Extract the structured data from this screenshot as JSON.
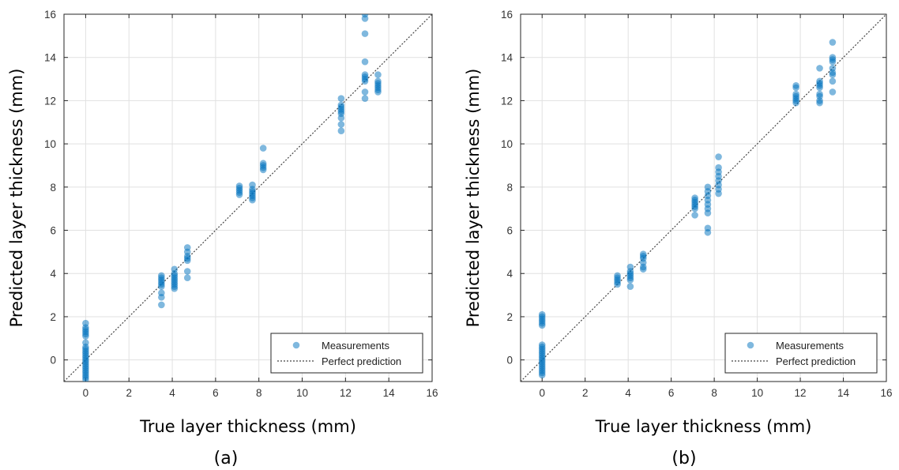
{
  "chart_data": [
    {
      "type": "scatter",
      "panel_label": "(a)",
      "xlabel": "True layer thickness (mm)",
      "ylabel": "Predicted layer thickness (mm)",
      "xlim": [
        -1,
        16
      ],
      "ylim": [
        -1,
        16
      ],
      "xticks": [
        0,
        2,
        4,
        6,
        8,
        10,
        12,
        14,
        16
      ],
      "yticks": [
        0,
        2,
        4,
        6,
        8,
        10,
        12,
        14,
        16
      ],
      "grid": true,
      "legend": {
        "placement": "bottom-right",
        "entries": [
          "Measurements",
          "Perfect prediction"
        ]
      },
      "colors": {
        "points": "#0072BD",
        "reference_line": "#444444"
      },
      "series": [
        {
          "name": "Measurements",
          "points": [
            [
              0,
              1.7
            ],
            [
              0,
              1.5
            ],
            [
              0,
              1.4
            ],
            [
              0,
              1.3
            ],
            [
              0,
              1.2
            ],
            [
              0,
              1.1
            ],
            [
              0,
              0.8
            ],
            [
              0,
              0.6
            ],
            [
              0,
              0.5
            ],
            [
              0,
              0.4
            ],
            [
              0,
              0.3
            ],
            [
              0,
              0.2
            ],
            [
              0,
              0.1
            ],
            [
              0,
              0.0
            ],
            [
              0,
              -0.1
            ],
            [
              0,
              -0.2
            ],
            [
              0,
              -0.3
            ],
            [
              0,
              -0.4
            ],
            [
              0,
              -0.5
            ],
            [
              0,
              -0.6
            ],
            [
              0,
              -0.7
            ],
            [
              0,
              -0.8
            ],
            [
              0,
              -0.9
            ],
            [
              3.5,
              3.9
            ],
            [
              3.5,
              3.8
            ],
            [
              3.5,
              3.7
            ],
            [
              3.5,
              3.6
            ],
            [
              3.5,
              3.5
            ],
            [
              3.5,
              3.4
            ],
            [
              3.5,
              3.1
            ],
            [
              3.5,
              2.9
            ],
            [
              3.5,
              2.55
            ],
            [
              4.1,
              4.2
            ],
            [
              4.1,
              4.0
            ],
            [
              4.1,
              3.9
            ],
            [
              4.1,
              3.8
            ],
            [
              4.1,
              3.7
            ],
            [
              4.1,
              3.6
            ],
            [
              4.1,
              3.5
            ],
            [
              4.1,
              3.4
            ],
            [
              4.1,
              3.3
            ],
            [
              4.7,
              5.2
            ],
            [
              4.7,
              5.0
            ],
            [
              4.7,
              4.8
            ],
            [
              4.7,
              4.7
            ],
            [
              4.7,
              4.6
            ],
            [
              4.7,
              4.1
            ],
            [
              4.7,
              3.8
            ],
            [
              7.1,
              8.05
            ],
            [
              7.1,
              7.95
            ],
            [
              7.1,
              7.85
            ],
            [
              7.1,
              7.75
            ],
            [
              7.1,
              7.65
            ],
            [
              7.7,
              8.1
            ],
            [
              7.7,
              7.9
            ],
            [
              7.7,
              7.8
            ],
            [
              7.7,
              7.7
            ],
            [
              7.7,
              7.6
            ],
            [
              7.7,
              7.5
            ],
            [
              7.7,
              7.4
            ],
            [
              8.2,
              9.8
            ],
            [
              8.2,
              9.1
            ],
            [
              8.2,
              9.0
            ],
            [
              8.2,
              8.9
            ],
            [
              8.2,
              8.8
            ],
            [
              11.8,
              12.1
            ],
            [
              11.8,
              11.8
            ],
            [
              11.8,
              11.7
            ],
            [
              11.8,
              11.6
            ],
            [
              11.8,
              11.5
            ],
            [
              11.8,
              11.4
            ],
            [
              11.8,
              11.2
            ],
            [
              11.8,
              10.9
            ],
            [
              11.8,
              10.6
            ],
            [
              12.9,
              16.0
            ],
            [
              12.9,
              15.8
            ],
            [
              12.9,
              15.1
            ],
            [
              12.9,
              13.8
            ],
            [
              12.9,
              13.2
            ],
            [
              12.9,
              13.1
            ],
            [
              12.9,
              13.0
            ],
            [
              12.9,
              12.9
            ],
            [
              12.9,
              12.4
            ],
            [
              12.9,
              12.1
            ],
            [
              13.5,
              13.2
            ],
            [
              13.5,
              12.9
            ],
            [
              13.5,
              12.8
            ],
            [
              13.5,
              12.7
            ],
            [
              13.5,
              12.6
            ],
            [
              13.5,
              12.5
            ],
            [
              13.5,
              12.4
            ]
          ]
        },
        {
          "name": "Perfect prediction",
          "line": [
            [
              -1,
              -1
            ],
            [
              16,
              16
            ]
          ]
        }
      ]
    },
    {
      "type": "scatter",
      "panel_label": "(b)",
      "xlabel": "True layer thickness (mm)",
      "ylabel": "Predicted layer thickness (mm)",
      "xlim": [
        -1,
        16
      ],
      "ylim": [
        -1,
        16
      ],
      "xticks": [
        0,
        2,
        4,
        6,
        8,
        10,
        12,
        14,
        16
      ],
      "yticks": [
        0,
        2,
        4,
        6,
        8,
        10,
        12,
        14,
        16
      ],
      "grid": true,
      "legend": {
        "placement": "bottom-right",
        "entries": [
          "Measurements",
          "Perfect prediction"
        ]
      },
      "colors": {
        "points": "#0072BD",
        "reference_line": "#444444"
      },
      "series": [
        {
          "name": "Measurements",
          "points": [
            [
              0,
              2.1
            ],
            [
              0,
              2.0
            ],
            [
              0,
              1.9
            ],
            [
              0,
              1.8
            ],
            [
              0,
              1.7
            ],
            [
              0,
              1.6
            ],
            [
              0,
              0.7
            ],
            [
              0,
              0.6
            ],
            [
              0,
              0.5
            ],
            [
              0,
              0.4
            ],
            [
              0,
              0.3
            ],
            [
              0,
              0.2
            ],
            [
              0,
              0.1
            ],
            [
              0,
              0.0
            ],
            [
              0,
              -0.1
            ],
            [
              0,
              -0.2
            ],
            [
              0,
              -0.3
            ],
            [
              0,
              -0.4
            ],
            [
              0,
              -0.5
            ],
            [
              0,
              -0.6
            ],
            [
              0,
              -0.7
            ],
            [
              3.5,
              3.9
            ],
            [
              3.5,
              3.8
            ],
            [
              3.5,
              3.7
            ],
            [
              3.5,
              3.6
            ],
            [
              3.5,
              3.5
            ],
            [
              4.1,
              4.3
            ],
            [
              4.1,
              4.1
            ],
            [
              4.1,
              4.0
            ],
            [
              4.1,
              3.9
            ],
            [
              4.1,
              3.8
            ],
            [
              4.1,
              3.7
            ],
            [
              4.1,
              3.4
            ],
            [
              4.7,
              4.9
            ],
            [
              4.7,
              4.8
            ],
            [
              4.7,
              4.7
            ],
            [
              4.7,
              4.5
            ],
            [
              4.7,
              4.3
            ],
            [
              4.7,
              4.2
            ],
            [
              7.1,
              7.5
            ],
            [
              7.1,
              7.4
            ],
            [
              7.1,
              7.3
            ],
            [
              7.1,
              7.2
            ],
            [
              7.1,
              7.1
            ],
            [
              7.1,
              7.0
            ],
            [
              7.1,
              6.7
            ],
            [
              7.7,
              8.0
            ],
            [
              7.7,
              7.8
            ],
            [
              7.7,
              7.6
            ],
            [
              7.7,
              7.4
            ],
            [
              7.7,
              7.2
            ],
            [
              7.7,
              7.0
            ],
            [
              7.7,
              6.8
            ],
            [
              7.7,
              6.1
            ],
            [
              7.7,
              5.9
            ],
            [
              8.2,
              9.4
            ],
            [
              8.2,
              8.9
            ],
            [
              8.2,
              8.7
            ],
            [
              8.2,
              8.5
            ],
            [
              8.2,
              8.3
            ],
            [
              8.2,
              8.1
            ],
            [
              8.2,
              7.9
            ],
            [
              8.2,
              7.7
            ],
            [
              11.8,
              12.7
            ],
            [
              11.8,
              12.6
            ],
            [
              11.8,
              12.3
            ],
            [
              11.8,
              12.2
            ],
            [
              11.8,
              12.1
            ],
            [
              11.8,
              12.0
            ],
            [
              11.8,
              11.9
            ],
            [
              12.9,
              13.5
            ],
            [
              12.9,
              12.9
            ],
            [
              12.9,
              12.8
            ],
            [
              12.9,
              12.7
            ],
            [
              12.9,
              12.6
            ],
            [
              12.9,
              12.3
            ],
            [
              12.9,
              12.2
            ],
            [
              12.9,
              12.0
            ],
            [
              12.9,
              11.9
            ],
            [
              13.5,
              14.7
            ],
            [
              13.5,
              14.0
            ],
            [
              13.5,
              13.9
            ],
            [
              13.5,
              13.8
            ],
            [
              13.5,
              13.5
            ],
            [
              13.5,
              13.3
            ],
            [
              13.5,
              13.2
            ],
            [
              13.5,
              12.9
            ],
            [
              13.5,
              12.4
            ]
          ]
        },
        {
          "name": "Perfect prediction",
          "line": [
            [
              -1,
              -1
            ],
            [
              16,
              16
            ]
          ]
        }
      ]
    }
  ]
}
